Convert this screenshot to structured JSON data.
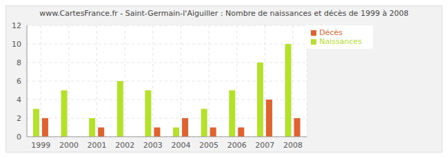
{
  "chart_data": {
    "type": "bar",
    "title": "www.CartesFrance.fr - Saint-Germain-l'Aiguiller : Nombre de naissances et décès de 1999 à 2008",
    "categories": [
      "1999",
      "2000",
      "2001",
      "2002",
      "2003",
      "2004",
      "2005",
      "2006",
      "2007",
      "2008"
    ],
    "series": [
      {
        "name": "Naissances",
        "color": "#b5e02d",
        "values": [
          3,
          5,
          2,
          6,
          5,
          1,
          3,
          5,
          8,
          10
        ]
      },
      {
        "name": "Décès",
        "color": "#e0622e",
        "values": [
          2,
          0,
          1,
          0,
          1,
          2,
          1,
          1,
          4,
          2
        ]
      }
    ],
    "ylim": [
      0,
      12
    ],
    "yticks": [
      0,
      2,
      4,
      6,
      8,
      10,
      12
    ],
    "grid": true,
    "legend": "top-right"
  }
}
